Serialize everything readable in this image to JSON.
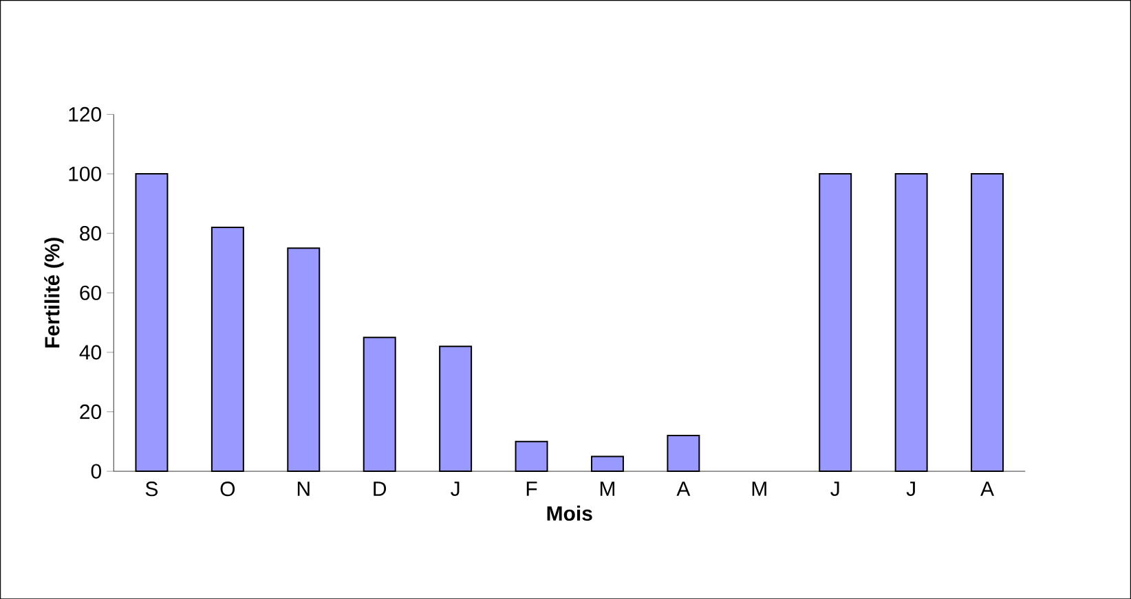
{
  "chart_data": {
    "type": "bar",
    "xlabel": "Mois",
    "ylabel": "Fertilité (%)",
    "categories": [
      "S",
      "O",
      "N",
      "D",
      "J",
      "F",
      "M",
      "A",
      "M",
      "J",
      "J",
      "A"
    ],
    "values": [
      100,
      82,
      75,
      45,
      42,
      10,
      5,
      12,
      null,
      100,
      100,
      100
    ],
    "color": "#9999ff",
    "ylim": [
      0,
      120
    ],
    "yticks": [
      0,
      20,
      40,
      60,
      80,
      100,
      120
    ],
    "grid": false
  }
}
